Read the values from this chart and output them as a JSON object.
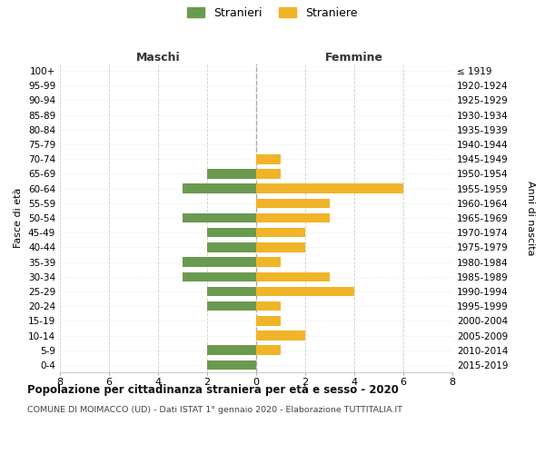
{
  "age_groups": [
    "100+",
    "95-99",
    "90-94",
    "85-89",
    "80-84",
    "75-79",
    "70-74",
    "65-69",
    "60-64",
    "55-59",
    "50-54",
    "45-49",
    "40-44",
    "35-39",
    "30-34",
    "25-29",
    "20-24",
    "15-19",
    "10-14",
    "5-9",
    "0-4"
  ],
  "birth_years": [
    "≤ 1919",
    "1920-1924",
    "1925-1929",
    "1930-1934",
    "1935-1939",
    "1940-1944",
    "1945-1949",
    "1950-1954",
    "1955-1959",
    "1960-1964",
    "1965-1969",
    "1970-1974",
    "1975-1979",
    "1980-1984",
    "1985-1989",
    "1990-1994",
    "1995-1999",
    "2000-2004",
    "2005-2009",
    "2010-2014",
    "2015-2019"
  ],
  "stranieri": [
    0,
    0,
    0,
    0,
    0,
    0,
    0,
    2,
    3,
    0,
    3,
    2,
    2,
    3,
    3,
    2,
    2,
    0,
    0,
    2,
    2
  ],
  "straniere": [
    0,
    0,
    0,
    0,
    0,
    0,
    1,
    1,
    6,
    3,
    3,
    2,
    2,
    1,
    3,
    4,
    1,
    1,
    2,
    1,
    0
  ],
  "color_stranieri": "#6a9a50",
  "color_straniere": "#f0b429",
  "title": "Popolazione per cittadinanza straniera per età e sesso - 2020",
  "subtitle": "COMUNE DI MOIMACCO (UD) - Dati ISTAT 1° gennaio 2020 - Elaborazione TUTTITALIA.IT",
  "xlabel_left": "Maschi",
  "xlabel_right": "Femmine",
  "ylabel_left": "Fasce di età",
  "ylabel_right": "Anni di nascita",
  "legend_stranieri": "Stranieri",
  "legend_straniere": "Straniere",
  "xlim": 8,
  "background_color": "#ffffff",
  "grid_color": "#cccccc",
  "grid_color_h": "#dddddd"
}
